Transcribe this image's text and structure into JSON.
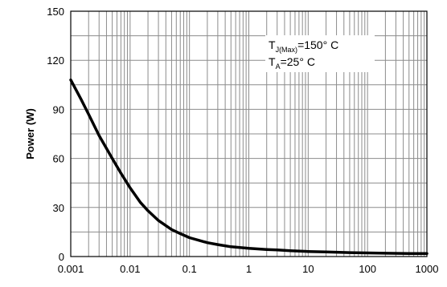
{
  "chart_data": {
    "type": "line",
    "title": "",
    "xlabel": "",
    "ylabel": "Power (W)",
    "xscale": "log",
    "xlim": [
      0.001,
      1000
    ],
    "ylim": [
      0,
      150
    ],
    "grid": true,
    "x_ticks": [
      "0.001",
      "0.01",
      "0.1",
      "1",
      "10",
      "100",
      "1000"
    ],
    "y_ticks": [
      "0",
      "30",
      "60",
      "90",
      "120",
      "150"
    ],
    "annotations": [
      {
        "base": "T",
        "sub": "J(Max)",
        "rest": "=150° C"
      },
      {
        "base": "T",
        "sub": "A",
        "rest": "=25° C"
      }
    ],
    "series": [
      {
        "x": [
          0.001,
          0.0015,
          0.002,
          0.003,
          0.005,
          0.007,
          0.01,
          0.015,
          0.02,
          0.03,
          0.05,
          0.07,
          0.1,
          0.2,
          0.3,
          0.5,
          1,
          2,
          3,
          5,
          10,
          20,
          50,
          100,
          200,
          500,
          1000
        ],
        "y": [
          108,
          96,
          87,
          74,
          60,
          51,
          42,
          33,
          28,
          22,
          16.5,
          14,
          11.5,
          8.5,
          7.3,
          6,
          5,
          4.3,
          4,
          3.6,
          3.1,
          2.8,
          2.4,
          2.2,
          2,
          1.85,
          1.8
        ]
      }
    ]
  }
}
